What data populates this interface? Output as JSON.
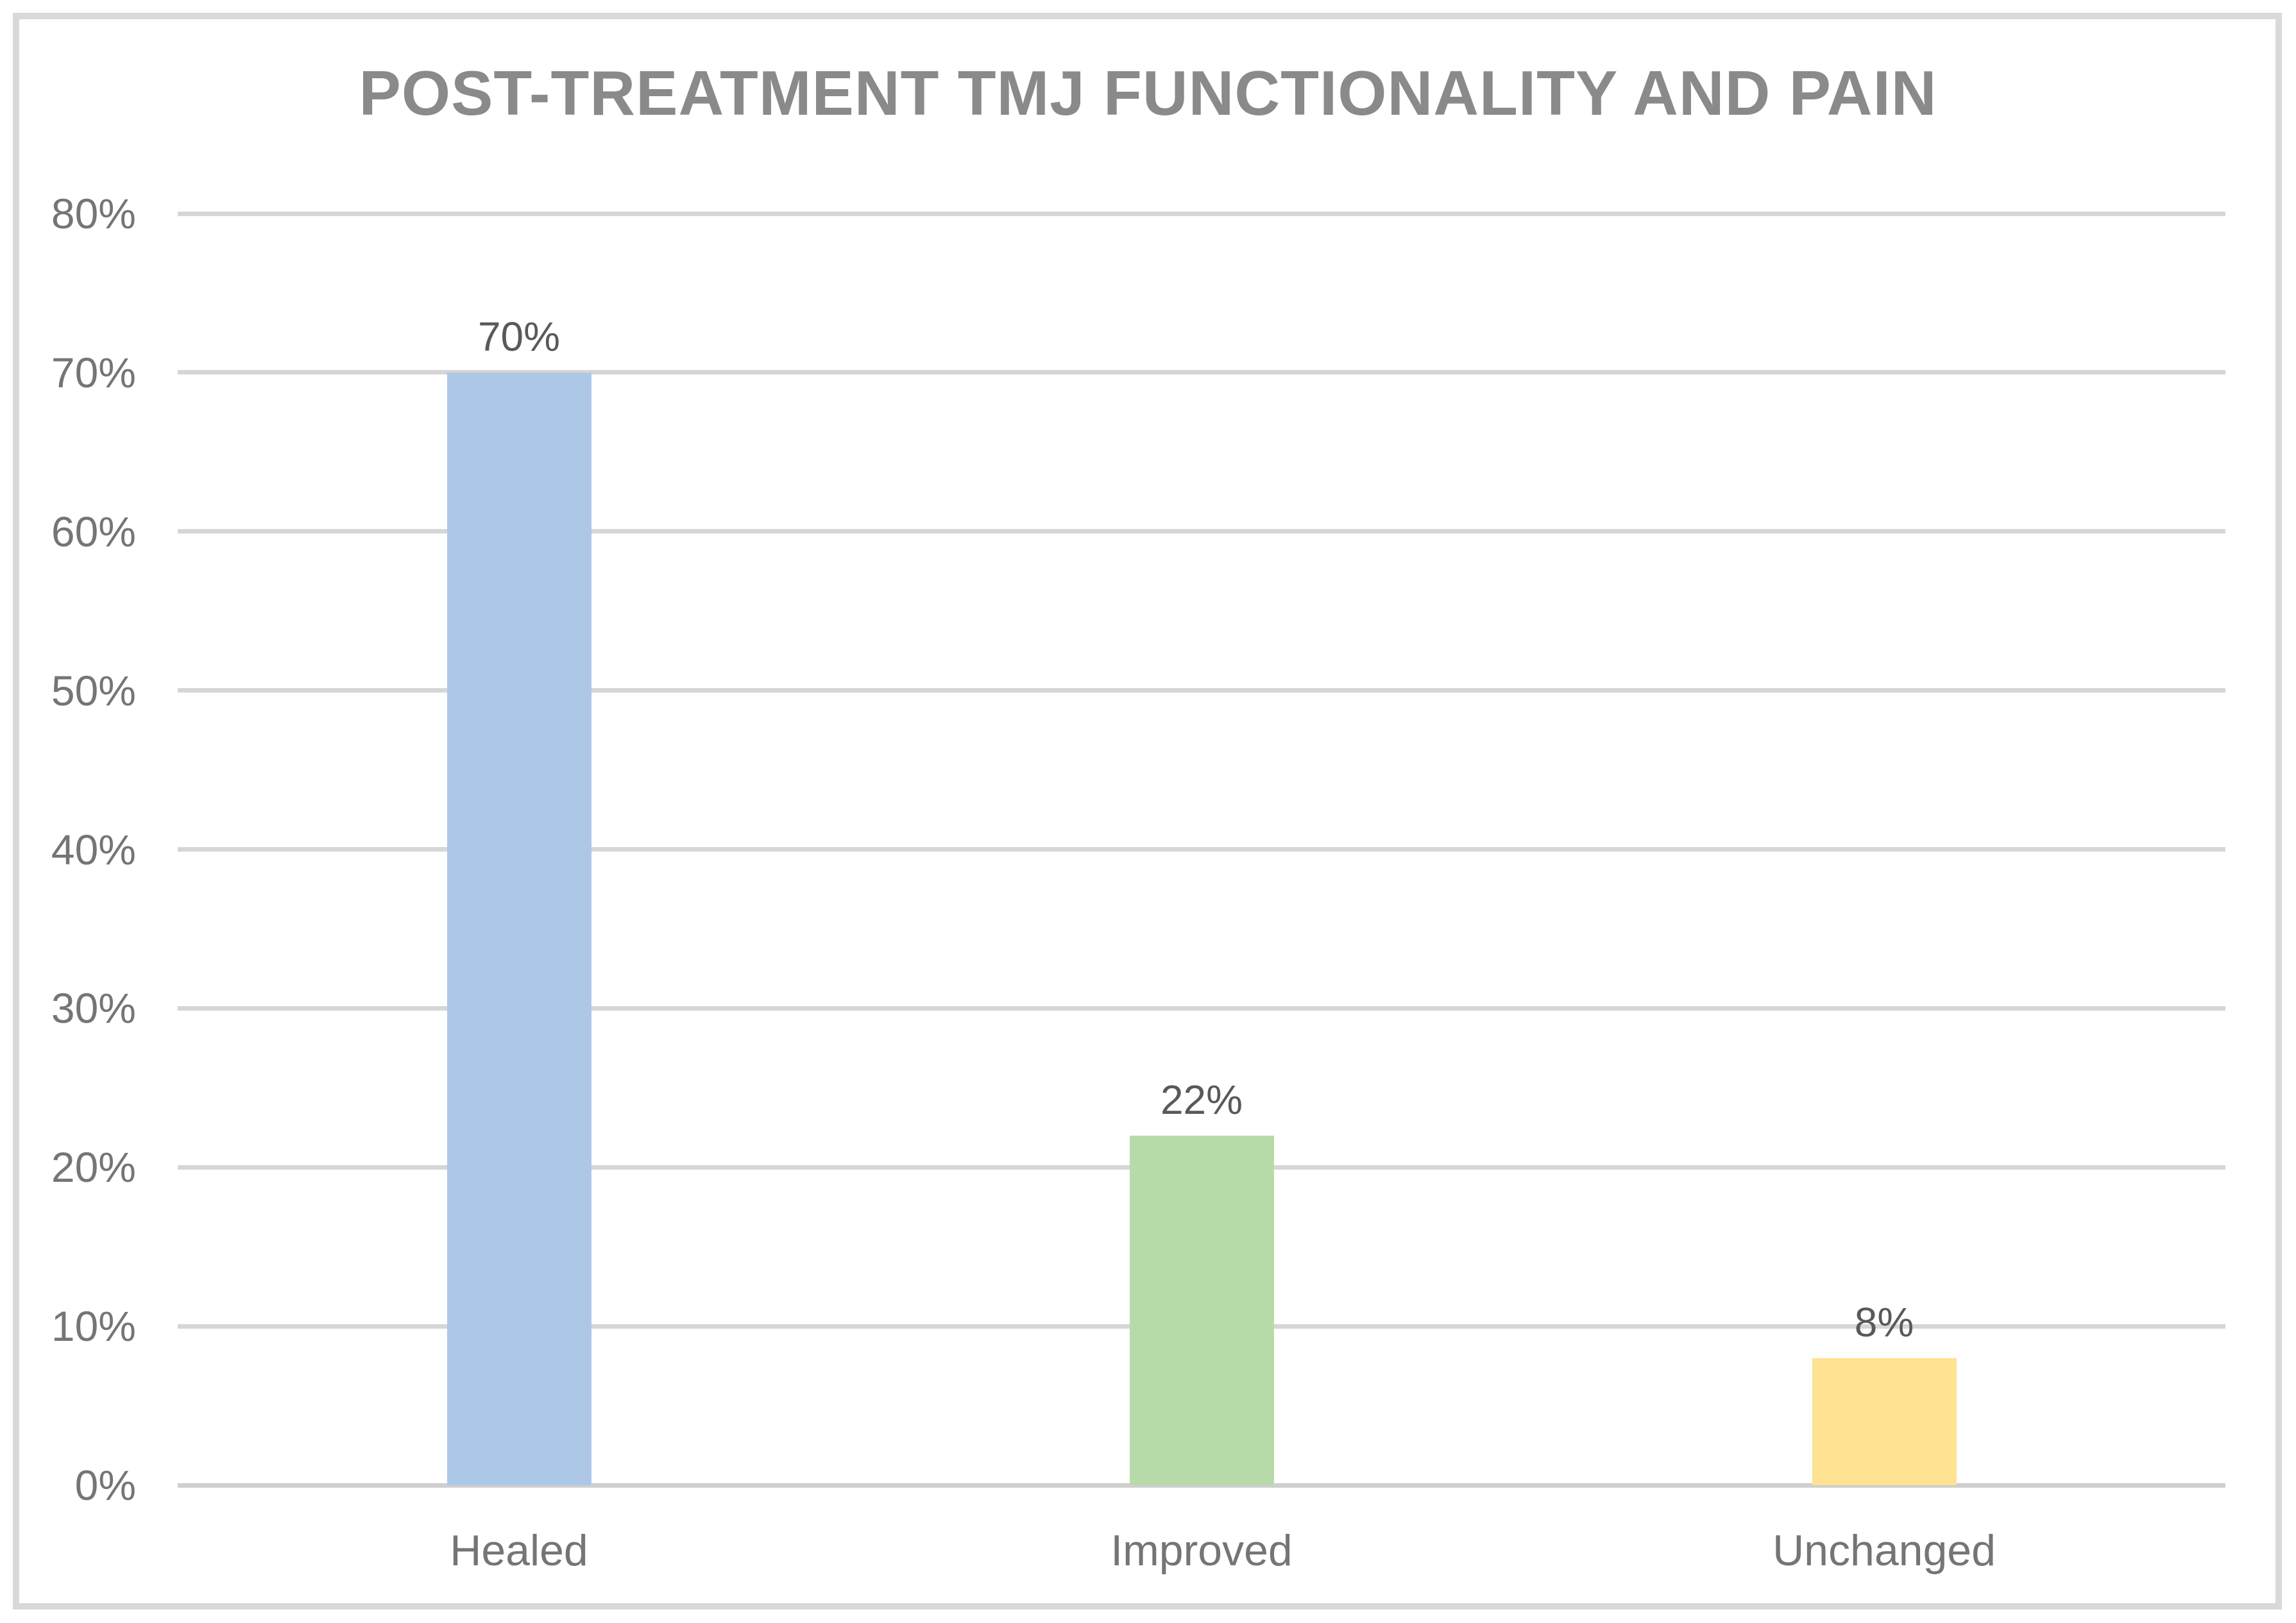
{
  "title": "POST-TREATMENT TMJ FUNCTIONALITY AND PAIN",
  "chart_data": {
    "type": "bar",
    "title": "POST-TREATMENT TMJ FUNCTIONALITY AND PAIN",
    "categories": [
      "Healed",
      "Improved",
      "Unchanged"
    ],
    "values": [
      70,
      22,
      8
    ],
    "value_labels": [
      "70%",
      "22%",
      "8%"
    ],
    "bar_colors": [
      "#ADC7E7",
      "#B7DBA8",
      "#FFE393"
    ],
    "xlabel": "",
    "ylabel": "",
    "ylim": [
      0,
      80
    ],
    "ytick_step": 10,
    "ytick_labels": [
      "0%",
      "10%",
      "20%",
      "30%",
      "40%",
      "50%",
      "60%",
      "70%",
      "80%"
    ],
    "grid": true,
    "legend": false
  },
  "colors": {
    "background": "#FFFFFF",
    "frame_border": "#D9D9D9",
    "gridline": "#D6D6D6",
    "axis_baseline": "#CFCFCF",
    "title_text": "#8A8A8A",
    "tick_text": "#757575",
    "data_label_text": "#595959"
  }
}
